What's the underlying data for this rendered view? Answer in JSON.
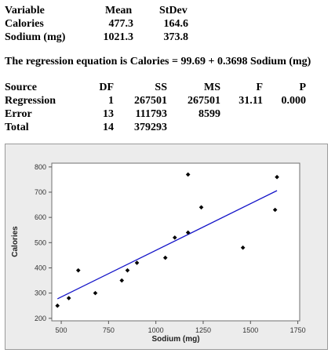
{
  "stats_table": {
    "headers": {
      "variable": "Variable",
      "mean": "Mean",
      "stdev": "StDev"
    },
    "rows": [
      {
        "variable": "Calories",
        "mean": "477.3",
        "stdev": "164.6"
      },
      {
        "variable": "Sodium (mg)",
        "mean": "1021.3",
        "stdev": "373.8"
      }
    ]
  },
  "regression_equation": "The regression equation is Calories = 99.69 + 0.3698 Sodium (mg)",
  "anova_table": {
    "headers": {
      "source": "Source",
      "df": "DF",
      "ss": "SS",
      "ms": "MS",
      "f": "F",
      "p": "P"
    },
    "rows": [
      {
        "source": "Regression",
        "df": "1",
        "ss": "267501",
        "ms": "267501",
        "f": "31.11",
        "p": "0.000"
      },
      {
        "source": "Error",
        "df": "13",
        "ss": "111793",
        "ms": "8599",
        "f": "",
        "p": ""
      },
      {
        "source": "Total",
        "df": "14",
        "ss": "379293",
        "ms": "",
        "f": "",
        "p": ""
      }
    ]
  },
  "chart_data": {
    "type": "scatter",
    "title": "",
    "xlabel": "Sodium (mg)",
    "ylabel": "Calories",
    "xlim": [
      450,
      1760
    ],
    "ylim": [
      190,
      815
    ],
    "xticks": [
      500,
      750,
      1000,
      1250,
      1500,
      1750
    ],
    "yticks": [
      200,
      300,
      400,
      500,
      600,
      700,
      800
    ],
    "grid": false,
    "points": [
      {
        "x": 480,
        "y": 250
      },
      {
        "x": 540,
        "y": 280
      },
      {
        "x": 590,
        "y": 390
      },
      {
        "x": 680,
        "y": 300
      },
      {
        "x": 820,
        "y": 350
      },
      {
        "x": 850,
        "y": 390
      },
      {
        "x": 900,
        "y": 420
      },
      {
        "x": 1050,
        "y": 440
      },
      {
        "x": 1100,
        "y": 520
      },
      {
        "x": 1170,
        "y": 540
      },
      {
        "x": 1170,
        "y": 770
      },
      {
        "x": 1240,
        "y": 640
      },
      {
        "x": 1460,
        "y": 480
      },
      {
        "x": 1630,
        "y": 630
      },
      {
        "x": 1640,
        "y": 760
      }
    ],
    "fit_line": {
      "intercept": 99.69,
      "slope": 0.3698,
      "x_range": [
        480,
        1640
      ],
      "color": "#1414c8"
    },
    "marker_color": "#000000"
  }
}
